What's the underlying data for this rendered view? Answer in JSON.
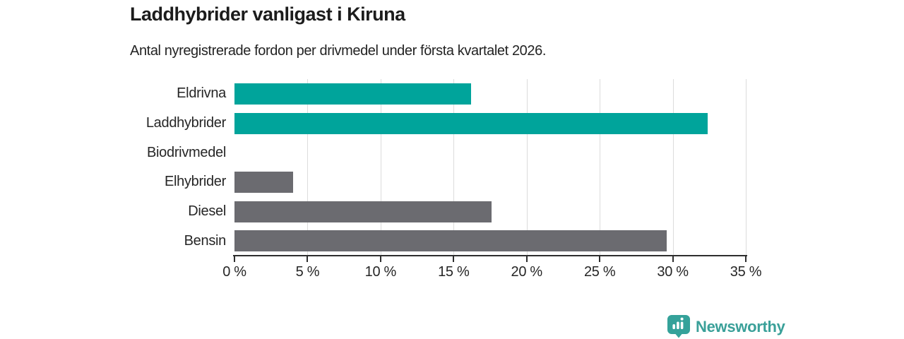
{
  "title": "Laddhybrider vanligast i Kiruna",
  "subtitle": "Antal nyregistrerade fordon per drivmedel under första kvartalet 2026.",
  "chart_data": {
    "type": "bar",
    "orientation": "horizontal",
    "title": "Laddhybrider vanligast i Kiruna",
    "subtitle": "Antal nyregistrerade fordon per drivmedel under första kvartalet 2026.",
    "categories": [
      "Eldrivna",
      "Laddhybrider",
      "Biodrivmedel",
      "Elhybrider",
      "Diesel",
      "Bensin"
    ],
    "values": [
      16.2,
      32.4,
      0,
      4.0,
      17.6,
      29.6
    ],
    "unit": "%",
    "bar_colors": [
      "#00a49b",
      "#00a49b",
      "#6b6b70",
      "#6b6b70",
      "#6b6b70",
      "#6b6b70"
    ],
    "highlight_color": "#00a49b",
    "base_color": "#6b6b70",
    "xlim": [
      0,
      35
    ],
    "x_ticks": [
      0,
      5,
      10,
      15,
      20,
      25,
      30,
      35
    ],
    "x_tick_labels": [
      "0 %",
      "5 %",
      "10 %",
      "15 %",
      "20 %",
      "25 %",
      "30 %",
      "35 %"
    ],
    "grid": "vertical-gridlines",
    "gridline_color": "#dcdcdc",
    "axis_color": "#2e2e2e",
    "legend": "none"
  },
  "logo": {
    "text": "Newsworthy",
    "color": "#3aa099",
    "icon": "newsworthy-speech-bubble-bar-chart-icon"
  }
}
